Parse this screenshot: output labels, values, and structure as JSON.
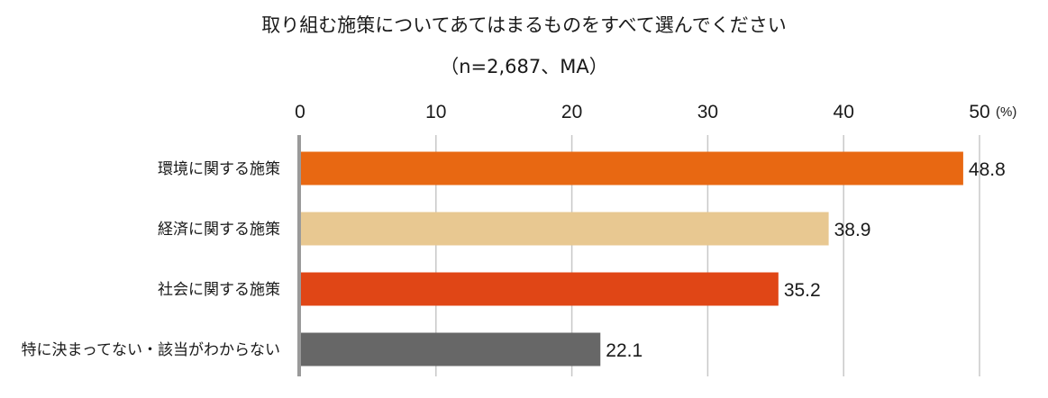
{
  "title": "取り組む施策についてあてはまるものをすべて選んでください",
  "subtitle": "（n=2,687、MA）",
  "chart_data": {
    "type": "bar",
    "orientation": "horizontal",
    "title": "取り組む施策についてあてはまるものをすべて選んでください",
    "subtitle": "（n=2,687、MA）",
    "unit": "(%)",
    "xlim": [
      0,
      50
    ],
    "ticks": [
      0,
      10,
      20,
      30,
      40,
      50
    ],
    "grid": true,
    "categories": [
      "環境に関する施策",
      "経済に関する施策",
      "社会に関する施策",
      "特に決まってない・該当がわからない"
    ],
    "values": [
      48.8,
      38.9,
      35.2,
      22.1
    ],
    "value_labels": [
      "48.8",
      "38.9",
      "35.2",
      "22.1"
    ],
    "colors": [
      "#E86812",
      "#E8C891",
      "#E04616",
      "#676767"
    ]
  }
}
